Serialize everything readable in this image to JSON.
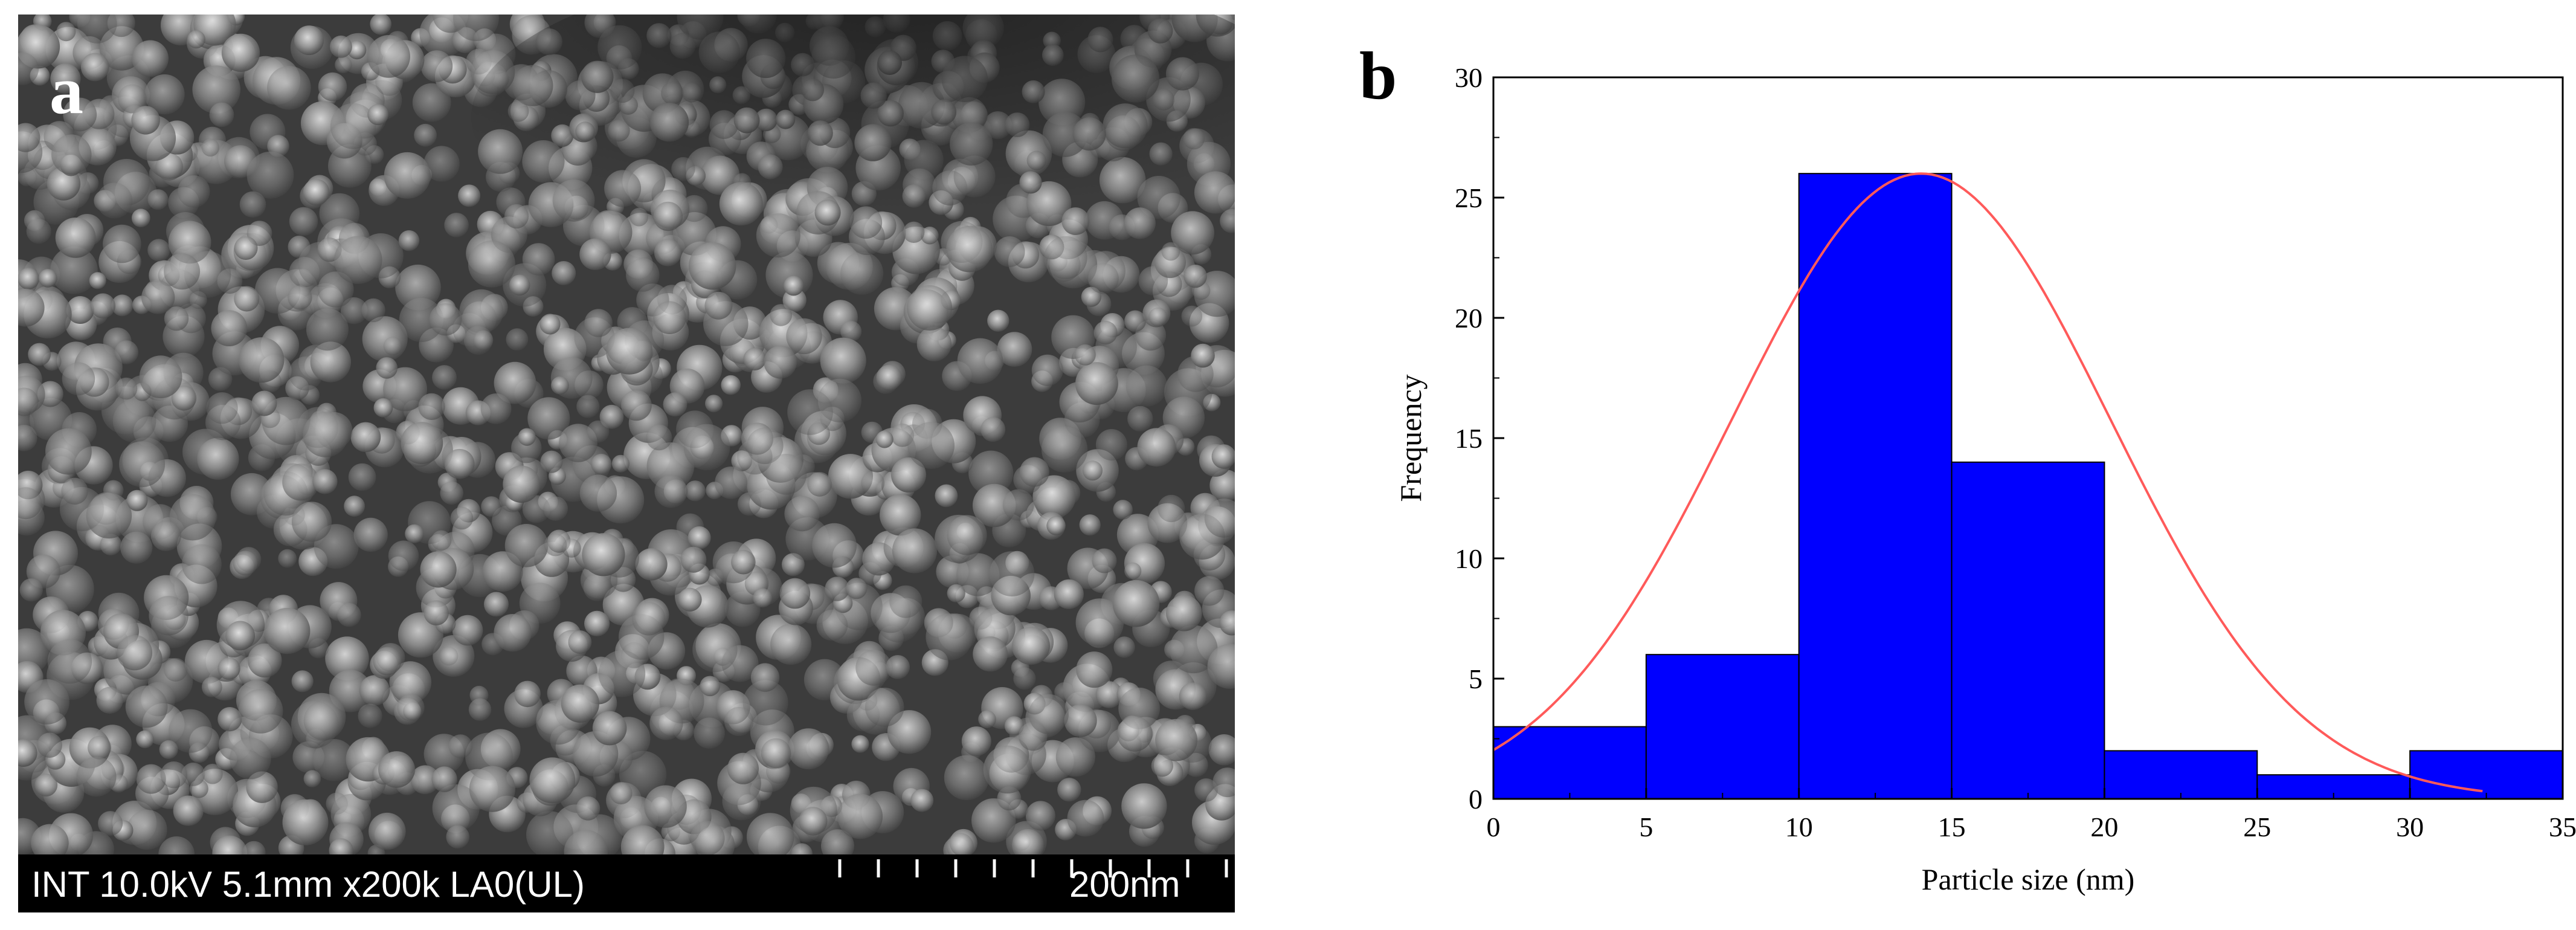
{
  "panels": {
    "a": {
      "letter": "a",
      "info_text": "INT 10.0kV 5.1mm x200k LA0(UL)",
      "scale_text": "200nm"
    },
    "b": {
      "letter": "b"
    }
  },
  "colors": {
    "bar_fill": "#0000ff",
    "bar_edge": "#000000",
    "fit_line": "#ff5a5a",
    "sem_bar": "#000000"
  },
  "chart_data": {
    "type": "bar",
    "title": "",
    "xlabel": "Particle size (nm)",
    "ylabel": "Frequency",
    "bins": [
      [
        0,
        5
      ],
      [
        5,
        10
      ],
      [
        10,
        15
      ],
      [
        15,
        20
      ],
      [
        20,
        25
      ],
      [
        25,
        30
      ],
      [
        30,
        35
      ]
    ],
    "values": [
      3,
      6,
      26,
      14,
      2,
      1,
      2
    ],
    "xlim": [
      0,
      35
    ],
    "ylim": [
      0,
      30
    ],
    "xticks": [
      0,
      5,
      10,
      15,
      20,
      25,
      30,
      35
    ],
    "yticks": [
      0,
      5,
      10,
      15,
      20,
      25,
      30
    ],
    "fit": {
      "type": "gaussian",
      "mean": 14,
      "sigma": 6.2,
      "peak": 26
    },
    "grid": false,
    "legend": "none"
  }
}
